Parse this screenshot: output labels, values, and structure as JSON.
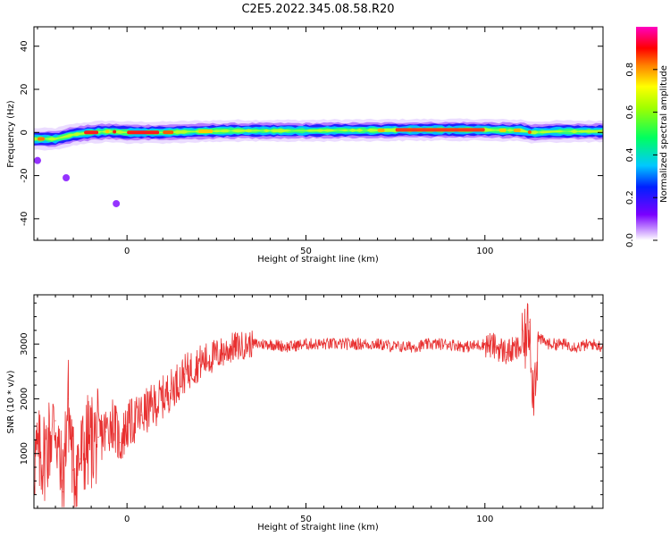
{
  "title": "C2E5.2022.345.08.58.R20",
  "chart_data": [
    {
      "type": "heatmap",
      "xlabel": "Height of straight line (km)",
      "ylabel": "Frequency (Hz)",
      "xlim": [
        -26,
        133
      ],
      "ylim": [
        -50,
        49
      ],
      "xticks": [
        0,
        50,
        100
      ],
      "yticks": [
        -40,
        -20,
        0,
        20,
        40
      ],
      "colorbar": {
        "label": "Normalized spectral amplitude",
        "range": [
          0,
          1
        ],
        "ticks": [
          "0.0",
          "0.2",
          "0.4",
          "0.6",
          "0.8"
        ]
      },
      "ridge": {
        "x": [
          -26,
          -20,
          -15,
          -10,
          -5,
          0,
          5,
          10,
          20,
          30,
          40,
          50,
          60,
          70,
          80,
          90,
          100,
          105,
          110,
          113,
          120,
          133
        ],
        "freq": [
          -3,
          -3,
          -1,
          0,
          0.5,
          0,
          0,
          0,
          0.5,
          0.8,
          0.8,
          0.8,
          1,
          1,
          1.2,
          1.2,
          1.2,
          1,
          1,
          0,
          0.5,
          0.5
        ]
      },
      "outliers": [
        {
          "x": -25,
          "freq": -13
        },
        {
          "x": -17,
          "freq": -21
        },
        {
          "x": -3,
          "freq": -33
        }
      ]
    },
    {
      "type": "line",
      "xlabel": "Height of straight line (km)",
      "ylabel": "SNR (10 * v/v)",
      "xlim": [
        -26,
        133
      ],
      "ylim": [
        0,
        3900
      ],
      "xticks": [
        0,
        50,
        100
      ],
      "yticks": [
        1000,
        2000,
        3000
      ],
      "series": [
        {
          "color": "#e83030",
          "x": [
            -26,
            -23,
            -20,
            -18,
            -16.5,
            -15,
            -13,
            -11,
            -8,
            -6,
            -4,
            -2,
            0,
            4,
            8,
            12,
            16,
            20,
            25,
            30,
            35,
            40,
            45,
            50,
            55,
            60,
            65,
            70,
            75,
            80,
            85,
            90,
            95,
            100,
            103,
            106,
            109,
            111,
            112.5,
            113.5,
            115,
            118,
            122,
            126,
            130,
            133
          ],
          "values": [
            900,
            1000,
            1600,
            300,
            2000,
            700,
            900,
            1200,
            1300,
            1400,
            1600,
            1200,
            1500,
            1700,
            1900,
            2150,
            2450,
            2650,
            2800,
            2950,
            3000,
            3000,
            2950,
            3000,
            3000,
            3000,
            3000,
            3000,
            2950,
            2950,
            3000,
            3000,
            2950,
            3000,
            2950,
            2850,
            2900,
            3000,
            3400,
            2100,
            3100,
            3000,
            3000,
            2950,
            3000,
            2950
          ]
        }
      ]
    }
  ]
}
